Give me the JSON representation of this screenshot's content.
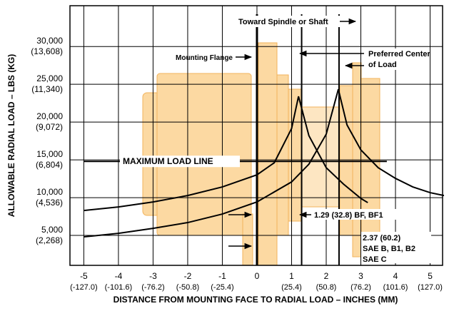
{
  "chart_data": {
    "type": "line",
    "y_label": "ALLOWABLE RADIAL LOAD – LBS (KG)",
    "x_label": "DISTANCE FROM MOUNTING FACE TO RADIAL LOAD – INCHES (MM)",
    "xlim": [
      -5.4,
      5.36
    ],
    "ylim": [
      1040,
      35400
    ],
    "xticks": [
      -5,
      -4,
      -3,
      -2,
      -1,
      0,
      1,
      2,
      3,
      4,
      5
    ],
    "xtick_mm_labels": [
      "(-127.0)",
      "(-101.6)",
      "(-76.2)",
      "(-50.8)",
      "(-25.4)",
      null,
      "(25.4)",
      "(50.8)",
      "(76.2)",
      "(101.6)",
      "(127.0)"
    ],
    "yticks": [
      {
        "value": 5000,
        "label": "5,000"
      },
      {
        "value": 10000,
        "label": "10,000"
      },
      {
        "value": 15000,
        "label": "15,000"
      },
      {
        "value": 20000,
        "label": "20,000"
      },
      {
        "value": 25000,
        "label": "25,000"
      },
      {
        "value": 30000,
        "label": "30,000"
      }
    ],
    "ytick_kg_labels": [
      "(2,268)",
      "(4,536)",
      "(6,804)",
      "(9,072)",
      "(11,340)",
      "(13,608)"
    ],
    "grid": true,
    "series": [
      {
        "color": "#000000",
        "x": [
          -5,
          -4,
          -3,
          -2,
          -1,
          0,
          0.5,
          1.0,
          1.2,
          1.5,
          2.0,
          2.5,
          3.0,
          3.2
        ],
        "values": [
          8300,
          8770,
          9430,
          10280,
          11420,
          13020,
          14620,
          19150,
          23400,
          18200,
          13960,
          11790,
          9900,
          9340
        ]
      },
      {
        "color": "#000000",
        "x": [
          -5,
          -4,
          -3,
          -2,
          -1,
          0,
          1.0,
          1.5,
          2.0,
          2.35,
          2.6,
          3.0,
          3.5,
          4.0,
          4.5,
          5.0,
          5.4
        ],
        "values": [
          4810,
          5280,
          5940,
          6700,
          7830,
          9430,
          12080,
          14430,
          18400,
          24340,
          19620,
          16320,
          13960,
          12550,
          11420,
          10660,
          10280
        ]
      }
    ],
    "vlines": [
      0,
      1.29,
      2.37
    ],
    "max_load_line": {
      "value": 14800,
      "x_range": [
        -5,
        3.75
      ],
      "label": "MAXIMUM LOAD LINE"
    },
    "annotations": {
      "spindle": "Toward Spindle or Shaft",
      "flange": "Mounting Flange",
      "center_1": "Preferred Center",
      "center_2": "of Load",
      "bf": "1.29 (32.8) BF, BF1",
      "sae_1": "2.37 (60.2)",
      "sae_2": "SAE B, B1, B2",
      "sae_3": "SAE C"
    }
  }
}
